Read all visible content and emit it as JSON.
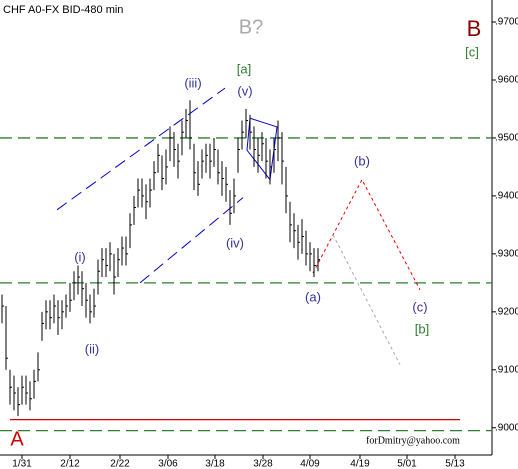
{
  "chart_data": {
    "type": "hlc",
    "title": "CHF A0-FX BID-480 min",
    "watermark": "forDmitry@yahoo.com",
    "bar_color": "#000000",
    "x": [
      0,
      1,
      2,
      3,
      4,
      5,
      6,
      7,
      8,
      9,
      10,
      11,
      12,
      13,
      14,
      15,
      16,
      17,
      18,
      19,
      20,
      21,
      22,
      23,
      24,
      25,
      26,
      27,
      28,
      29,
      30,
      31,
      32,
      33,
      34,
      35,
      36,
      37,
      38,
      39,
      40,
      41,
      42,
      43,
      44,
      45,
      46,
      47,
      48,
      49,
      50,
      51,
      52,
      53,
      54,
      55,
      56,
      57,
      58,
      59,
      60,
      61,
      62,
      63,
      64,
      65,
      66,
      67,
      68,
      69,
      70,
      71,
      72,
      73,
      74,
      75,
      76,
      77,
      78,
      79
    ],
    "high": [
      0.923,
      0.921,
      0.91,
      0.909,
      0.907,
      0.909,
      0.909,
      0.908,
      0.91,
      0.913,
      0.92,
      0.922,
      0.922,
      0.923,
      0.922,
      0.922,
      0.923,
      0.925,
      0.927,
      0.928,
      0.927,
      0.925,
      0.923,
      0.924,
      0.929,
      0.931,
      0.931,
      0.932,
      0.93,
      0.931,
      0.933,
      0.933,
      0.937,
      0.94,
      0.943,
      0.943,
      0.942,
      0.943,
      0.946,
      0.949,
      0.947,
      0.948,
      0.952,
      0.951,
      0.949,
      0.953,
      0.955,
      0.9565,
      0.949,
      0.946,
      0.948,
      0.949,
      0.949,
      0.95,
      0.948,
      0.946,
      0.945,
      0.941,
      0.943,
      0.95,
      0.953,
      0.955,
      0.954,
      0.952,
      0.95,
      0.951,
      0.95,
      0.948,
      0.95,
      0.953,
      0.951,
      0.945,
      0.939,
      0.937,
      0.935,
      0.936,
      0.934,
      0.932,
      0.931,
      0.931
    ],
    "low": [
      0.918,
      0.91,
      0.904,
      0.903,
      0.902,
      0.904,
      0.904,
      0.903,
      0.905,
      0.908,
      0.915,
      0.917,
      0.917,
      0.918,
      0.916,
      0.917,
      0.919,
      0.92,
      0.922,
      0.923,
      0.921,
      0.919,
      0.918,
      0.919,
      0.923,
      0.926,
      0.926,
      0.927,
      0.923,
      0.926,
      0.928,
      0.928,
      0.931,
      0.935,
      0.938,
      0.938,
      0.936,
      0.938,
      0.941,
      0.944,
      0.941,
      0.942,
      0.946,
      0.945,
      0.943,
      0.947,
      0.95,
      0.948,
      0.941,
      0.94,
      0.943,
      0.944,
      0.943,
      0.945,
      0.942,
      0.94,
      0.939,
      0.935,
      0.937,
      0.944,
      0.948,
      0.95,
      0.948,
      0.945,
      0.944,
      0.946,
      0.943,
      0.942,
      0.944,
      0.946,
      0.942,
      0.937,
      0.932,
      0.931,
      0.929,
      0.93,
      0.928,
      0.927,
      0.926,
      0.927
    ],
    "close": [
      0.921,
      0.912,
      0.907,
      0.906,
      0.904,
      0.907,
      0.906,
      0.905,
      0.908,
      0.91,
      0.918,
      0.92,
      0.919,
      0.921,
      0.919,
      0.92,
      0.921,
      0.922,
      0.925,
      0.926,
      0.924,
      0.922,
      0.92,
      0.921,
      0.927,
      0.929,
      0.928,
      0.93,
      0.926,
      0.929,
      0.931,
      0.93,
      0.935,
      0.938,
      0.941,
      0.94,
      0.939,
      0.941,
      0.944,
      0.947,
      0.943,
      0.945,
      0.95,
      0.948,
      0.946,
      0.951,
      0.953,
      0.95,
      0.944,
      0.942,
      0.946,
      0.947,
      0.946,
      0.948,
      0.944,
      0.943,
      0.942,
      0.937,
      0.94,
      0.948,
      0.951,
      0.953,
      0.951,
      0.948,
      0.947,
      0.949,
      0.946,
      0.945,
      0.948,
      0.95,
      0.946,
      0.94,
      0.935,
      0.934,
      0.932,
      0.933,
      0.93,
      0.93,
      0.928,
      0.929
    ],
    "xlim": [
      -0.5,
      122.5
    ],
    "ylim": [
      0.8953,
      0.9738
    ],
    "xticks": [
      {
        "value": 5,
        "label": "1/31"
      },
      {
        "value": 17,
        "label": "2/12"
      },
      {
        "value": 29.5,
        "label": "2/22"
      },
      {
        "value": 41.5,
        "label": "3/06"
      },
      {
        "value": 53.25,
        "label": "3/18"
      },
      {
        "value": 65.25,
        "label": "3/28"
      },
      {
        "value": 77,
        "label": "4/09"
      },
      {
        "value": 89.5,
        "label": "4/19"
      },
      {
        "value": 101.25,
        "label": "5/01"
      },
      {
        "value": 113.25,
        "label": "5/13"
      }
    ],
    "yticks": [
      {
        "value": 0.9,
        "label": ".9000"
      },
      {
        "value": 0.91,
        "label": ".9100"
      },
      {
        "value": 0.92,
        "label": ".9200"
      },
      {
        "value": 0.93,
        "label": ".9300"
      },
      {
        "value": 0.94,
        "label": ".9400"
      },
      {
        "value": 0.95,
        "label": ".9500"
      },
      {
        "value": 0.96,
        "label": ".9600"
      },
      {
        "value": 0.97,
        "label": ".9700"
      }
    ],
    "hlines": [
      {
        "value": 0.95,
        "color": "#2e7d32",
        "style": "dashed"
      },
      {
        "value": 0.925,
        "color": "#2e7d32",
        "style": "dashed"
      },
      {
        "value": 0.8995,
        "color": "#2e7d32",
        "style": "dashed"
      },
      {
        "value": 0.9014,
        "color": "#cc0000",
        "style": "solid",
        "x": [
          2,
          114.5
        ]
      }
    ],
    "lines": [
      {
        "color": "#0000cc",
        "style": "dashed",
        "x": [
          13.75,
          55.75
        ],
        "y": [
          0.9376,
          0.9586
        ]
      },
      {
        "color": "#0000cc",
        "style": "dashed",
        "x": [
          34.5,
          60.25
        ],
        "y": [
          0.925,
          0.9397
        ]
      },
      {
        "color": "#0000cc",
        "style": "solid",
        "x": [
          62,
          68.75,
          67,
          61.25,
          62
        ],
        "y": [
          0.9534,
          0.9519,
          0.9428,
          0.9479,
          0.9534
        ]
      },
      {
        "color": "#ee0000",
        "style": "dotted",
        "x": [
          77.75,
          90,
          104.5
        ],
        "y": [
          0.9267,
          0.9428,
          0.9238
        ]
      },
      {
        "color": "#aaaaaa",
        "style": "dotted",
        "x": [
          82.75,
          99.5
        ],
        "y": [
          0.9333,
          0.9109
        ]
      }
    ],
    "annotations": [
      "B?",
      "B",
      "[c]",
      "[a]",
      "(iii)",
      "(v)",
      "(b)",
      "(i)",
      "(iv)",
      "(a)",
      "(c)",
      "[b]",
      "(ii)",
      "A"
    ]
  }
}
